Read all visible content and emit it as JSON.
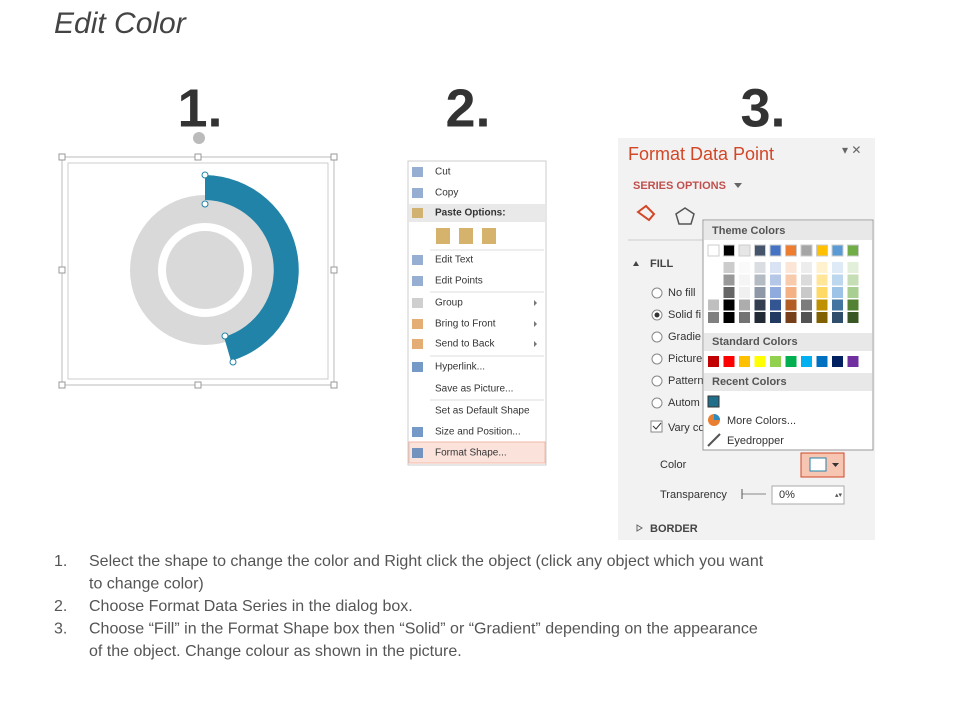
{
  "header": {
    "title": "Edit Color"
  },
  "steps": [
    "1.",
    "2.",
    "3."
  ],
  "context_menu": {
    "items": [
      "Cut",
      "Copy",
      "Paste Options:",
      "Edit Text",
      "Edit Points",
      "Group",
      "Bring to Front",
      "Send to Back",
      "Hyperlink...",
      "Save as Picture...",
      "Set as Default Shape",
      "Size and Position...",
      "Format Shape..."
    ]
  },
  "format_panel": {
    "title": "Format Data Point",
    "section": "SERIES OPTIONS",
    "fill_heading": "FILL",
    "fill_options": [
      "No fill",
      "Solid fi",
      "Gradie",
      "Picture",
      "Pattern",
      "Autom"
    ],
    "vary": "Vary co",
    "color_label": "Color",
    "transparency_label": "Transparency",
    "transparency_value": "0%",
    "border_heading": "BORDER"
  },
  "color_popup": {
    "theme_heading": "Theme Colors",
    "standard_heading": "Standard Colors",
    "recent_heading": "Recent Colors",
    "more_colors": "More Colors...",
    "eyedropper": "Eyedropper",
    "theme_colors": [
      "#ffffff",
      "#000000",
      "#e7e6e6",
      "#44546a",
      "#4472c4",
      "#ed7d31",
      "#a5a5a5",
      "#ffc000",
      "#5b9bd5",
      "#70ad47"
    ],
    "standard_colors": [
      "#c00000",
      "#ff0000",
      "#ffc000",
      "#ffff00",
      "#92d050",
      "#00b050",
      "#00b0f0",
      "#0070c0",
      "#002060",
      "#7030a0"
    ],
    "recent_colors": [
      "#1f6f8b"
    ]
  },
  "instructions": [
    {
      "marker": "1.",
      "lines": [
        "Select the shape to change the color and Right click the object (click any object which you want",
        "to change color)"
      ]
    },
    {
      "marker": "2.",
      "lines": [
        "Choose Format Data Series in the dialog box."
      ]
    },
    {
      "marker": "3.",
      "lines": [
        "Choose “Fill” in the Format Shape box then “Solid” or “Gradient” depending on the appearance",
        "of the object. Change colour as shown in the picture."
      ]
    }
  ]
}
